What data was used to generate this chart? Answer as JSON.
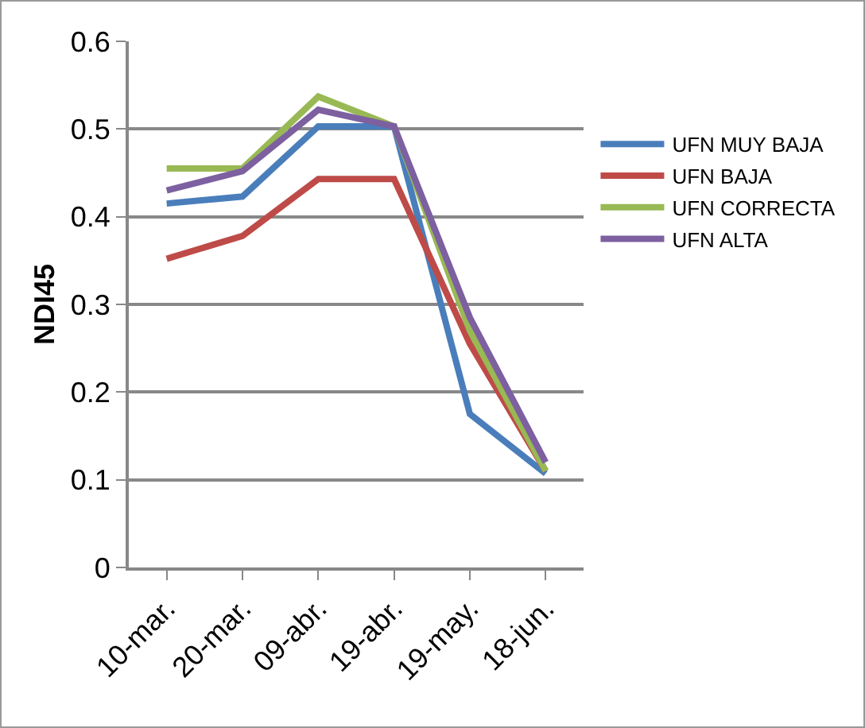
{
  "chart_data": {
    "type": "line",
    "ylabel": "NDI45",
    "categories": [
      "10-mar.",
      "20-mar.",
      "09-abr.",
      "19-abr.",
      "19-may.",
      "18-jun."
    ],
    "series": [
      {
        "name": "UFN MUY BAJA",
        "color": "#4a7ebb",
        "values": [
          0.415,
          0.423,
          0.503,
          0.503,
          0.175,
          0.107
        ]
      },
      {
        "name": "UFN BAJA",
        "color": "#be4b48",
        "values": [
          0.352,
          0.378,
          0.443,
          0.443,
          0.255,
          0.11
        ]
      },
      {
        "name": "UFN CORRECTA",
        "color": "#98b954",
        "values": [
          0.455,
          0.455,
          0.537,
          0.503,
          0.27,
          0.11
        ]
      },
      {
        "name": "UFN ALTA",
        "color": "#7d60a0",
        "values": [
          0.43,
          0.452,
          0.522,
          0.503,
          0.285,
          0.12
        ]
      }
    ],
    "ylim": [
      0,
      0.6
    ],
    "yticks": [
      0,
      0.1,
      0.2,
      0.3,
      0.4,
      0.5,
      0.6
    ],
    "grid": "y",
    "legend": "right",
    "marker": "none",
    "line_style": "solid"
  }
}
